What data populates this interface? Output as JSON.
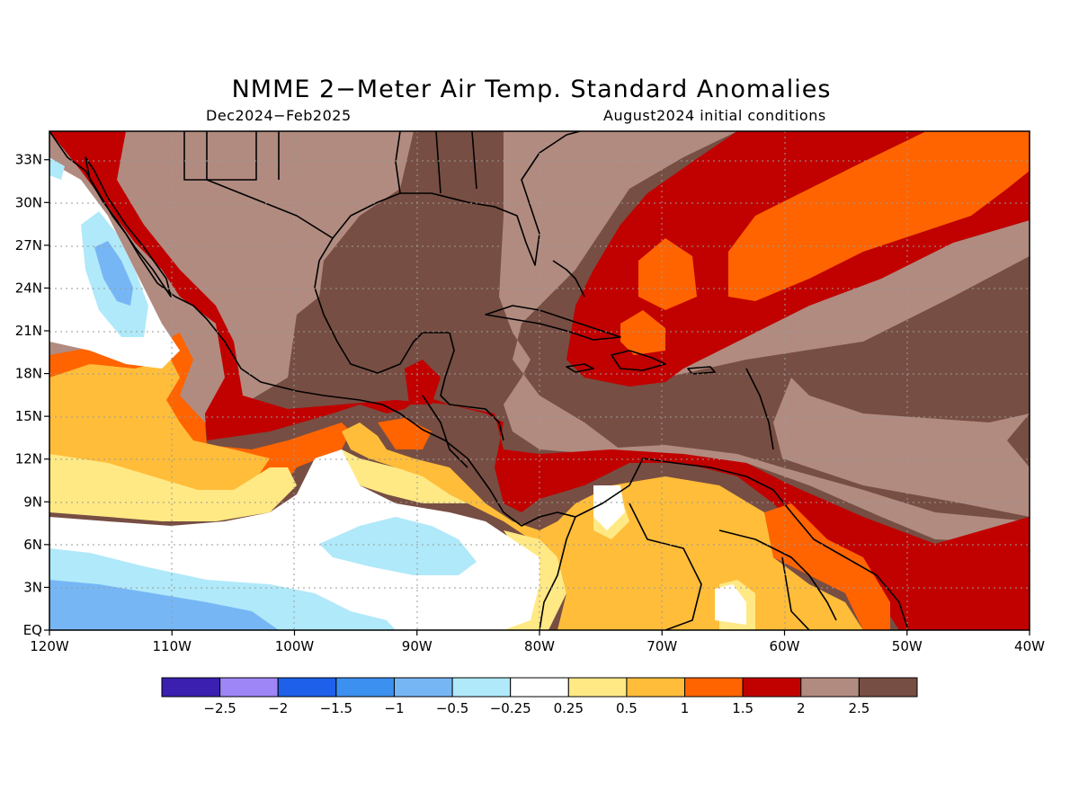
{
  "title": "NMME 2−Meter Air Temp. Standard Anomalies",
  "subtitle_left": "Dec2024−Feb2025",
  "subtitle_right": "August2024 initial conditions",
  "map": {
    "lon_range": [
      -120,
      -40
    ],
    "lat_range": [
      0,
      35
    ],
    "lon_ticks": [
      "120W",
      "110W",
      "100W",
      "90W",
      "80W",
      "70W",
      "60W",
      "50W",
      "40W"
    ],
    "lat_ticks": [
      "33N",
      "30N",
      "27N",
      "24N",
      "21N",
      "18N",
      "15N",
      "12N",
      "9N",
      "6N",
      "3N",
      "EQ"
    ],
    "grid": "dotted"
  },
  "colorbar": {
    "colors": [
      "#3a1fb0",
      "#9e86f7",
      "#1f60eb",
      "#3c91f0",
      "#77b6f5",
      "#b0e9f9",
      "#ffffff",
      "#ffe985",
      "#ffbd3a",
      "#ff6400",
      "#c10000",
      "#b18b80",
      "#774e43"
    ],
    "labels": [
      "−2.5",
      "−2",
      "−1.5",
      "−1",
      "−0.5",
      "−0.25",
      "0.25",
      "0.5",
      "1",
      "1.5",
      "2",
      "2.5"
    ]
  }
}
